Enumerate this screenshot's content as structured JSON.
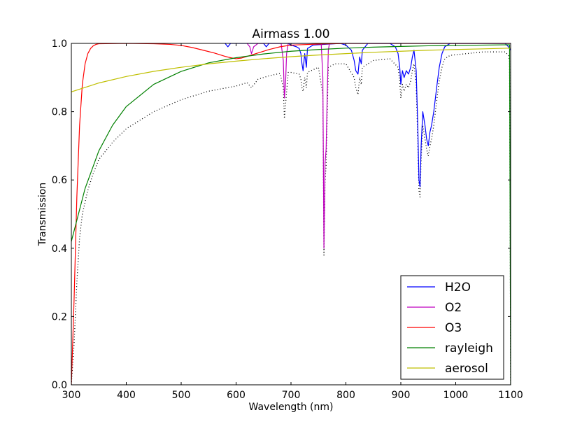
{
  "chart_data": {
    "type": "line",
    "title": "Airmass 1.00",
    "xlabel": "Wavelength (nm)",
    "ylabel": "Transmission",
    "xlim": [
      300,
      1100
    ],
    "ylim": [
      0.0,
      1.0
    ],
    "xticks": [
      300,
      400,
      500,
      600,
      700,
      800,
      900,
      1000,
      1100
    ],
    "xtick_labels": [
      "300",
      "400",
      "500",
      "600",
      "700",
      "800",
      "900",
      "1000",
      "1100"
    ],
    "yticks": [
      0.0,
      0.2,
      0.4,
      0.6,
      0.8,
      1.0
    ],
    "ytick_labels": [
      "0.0",
      "0.2",
      "0.4",
      "0.6",
      "0.8",
      "1.0"
    ],
    "grid": false,
    "legend_position": "bottom-right",
    "series": [
      {
        "name": "H2O",
        "color": "#0000ff",
        "style": "solid",
        "points": [
          [
            580,
            1.0
          ],
          [
            585,
            0.99
          ],
          [
            590,
            1.0
          ],
          [
            650,
            1.0
          ],
          [
            655,
            0.99
          ],
          [
            660,
            1.0
          ],
          [
            695,
            1.0
          ],
          [
            700,
            0.995
          ],
          [
            710,
            0.99
          ],
          [
            715,
            0.985
          ],
          [
            718,
            0.97
          ],
          [
            720,
            0.94
          ],
          [
            722,
            0.92
          ],
          [
            725,
            0.97
          ],
          [
            728,
            0.93
          ],
          [
            730,
            0.985
          ],
          [
            735,
            0.99
          ],
          [
            740,
            0.995
          ],
          [
            790,
            1.0
          ],
          [
            800,
            0.995
          ],
          [
            810,
            0.98
          ],
          [
            815,
            0.95
          ],
          [
            818,
            0.92
          ],
          [
            822,
            0.91
          ],
          [
            825,
            0.96
          ],
          [
            828,
            0.94
          ],
          [
            830,
            0.98
          ],
          [
            835,
            0.99
          ],
          [
            840,
            1.0
          ],
          [
            880,
            1.0
          ],
          [
            890,
            0.99
          ],
          [
            895,
            0.97
          ],
          [
            898,
            0.93
          ],
          [
            900,
            0.88
          ],
          [
            903,
            0.92
          ],
          [
            906,
            0.9
          ],
          [
            910,
            0.92
          ],
          [
            914,
            0.91
          ],
          [
            918,
            0.93
          ],
          [
            921,
            0.96
          ],
          [
            924,
            0.98
          ],
          [
            928,
            0.92
          ],
          [
            931,
            0.75
          ],
          [
            933,
            0.6
          ],
          [
            935,
            0.58
          ],
          [
            937,
            0.7
          ],
          [
            940,
            0.8
          ],
          [
            944,
            0.76
          ],
          [
            947,
            0.72
          ],
          [
            950,
            0.7
          ],
          [
            953,
            0.74
          ],
          [
            956,
            0.76
          ],
          [
            960,
            0.8
          ],
          [
            963,
            0.84
          ],
          [
            966,
            0.88
          ],
          [
            970,
            0.93
          ],
          [
            975,
            0.97
          ],
          [
            980,
            0.99
          ],
          [
            985,
            0.995
          ],
          [
            990,
            1.0
          ],
          [
            1090,
            1.0
          ],
          [
            1093,
            0.995
          ],
          [
            1096,
            0.99
          ],
          [
            1100,
            0.98
          ]
        ]
      },
      {
        "name": "O2",
        "color": "#bf00bf",
        "style": "solid",
        "points": [
          [
            620,
            1.0
          ],
          [
            625,
            0.99
          ],
          [
            628,
            0.97
          ],
          [
            632,
            0.99
          ],
          [
            640,
            1.0
          ],
          [
            682,
            1.0
          ],
          [
            686,
            0.95
          ],
          [
            688,
            0.84
          ],
          [
            690,
            0.88
          ],
          [
            692,
            0.97
          ],
          [
            695,
            1.0
          ],
          [
            755,
            1.0
          ],
          [
            758,
            0.9
          ],
          [
            760,
            0.4
          ],
          [
            762,
            0.65
          ],
          [
            764,
            0.69
          ],
          [
            766,
            0.85
          ],
          [
            768,
            0.98
          ],
          [
            770,
            1.0
          ],
          [
            1100,
            1.0
          ]
        ]
      },
      {
        "name": "O3",
        "color": "#ff0000",
        "style": "solid",
        "points": [
          [
            300,
            0.0
          ],
          [
            305,
            0.25
          ],
          [
            310,
            0.55
          ],
          [
            315,
            0.76
          ],
          [
            320,
            0.88
          ],
          [
            325,
            0.94
          ],
          [
            330,
            0.97
          ],
          [
            335,
            0.985
          ],
          [
            340,
            0.993
          ],
          [
            345,
            0.997
          ],
          [
            350,
            0.999
          ],
          [
            400,
            1.0
          ],
          [
            450,
            0.999
          ],
          [
            480,
            0.997
          ],
          [
            500,
            0.994
          ],
          [
            520,
            0.988
          ],
          [
            540,
            0.98
          ],
          [
            560,
            0.972
          ],
          [
            580,
            0.962
          ],
          [
            590,
            0.958
          ],
          [
            600,
            0.955
          ],
          [
            610,
            0.957
          ],
          [
            620,
            0.962
          ],
          [
            640,
            0.972
          ],
          [
            660,
            0.982
          ],
          [
            680,
            0.99
          ],
          [
            700,
            0.995
          ],
          [
            750,
            0.998
          ],
          [
            800,
            1.0
          ],
          [
            1100,
            1.0
          ]
        ]
      },
      {
        "name": "rayleigh",
        "color": "#008000",
        "style": "solid",
        "points": [
          [
            300,
            0.42
          ],
          [
            325,
            0.575
          ],
          [
            350,
            0.685
          ],
          [
            375,
            0.76
          ],
          [
            400,
            0.815
          ],
          [
            450,
            0.88
          ],
          [
            500,
            0.918
          ],
          [
            550,
            0.943
          ],
          [
            600,
            0.958
          ],
          [
            650,
            0.969
          ],
          [
            700,
            0.977
          ],
          [
            750,
            0.982
          ],
          [
            800,
            0.986
          ],
          [
            850,
            0.989
          ],
          [
            900,
            0.991
          ],
          [
            950,
            0.993
          ],
          [
            1000,
            0.994
          ],
          [
            1050,
            0.995
          ],
          [
            1098,
            0.996
          ],
          [
            1099,
            0.5
          ],
          [
            1100,
            0.0
          ]
        ]
      },
      {
        "name": "aerosol",
        "color": "#bfbf00",
        "style": "solid",
        "points": [
          [
            300,
            0.858
          ],
          [
            350,
            0.884
          ],
          [
            400,
            0.903
          ],
          [
            450,
            0.918
          ],
          [
            500,
            0.93
          ],
          [
            550,
            0.94
          ],
          [
            600,
            0.948
          ],
          [
            650,
            0.955
          ],
          [
            700,
            0.961
          ],
          [
            750,
            0.966
          ],
          [
            800,
            0.97
          ],
          [
            850,
            0.974
          ],
          [
            900,
            0.977
          ],
          [
            950,
            0.98
          ],
          [
            1000,
            0.982
          ],
          [
            1050,
            0.984
          ],
          [
            1100,
            0.986
          ]
        ]
      },
      {
        "name": "",
        "color": "#000000",
        "style": "dotted",
        "points": [
          [
            300,
            0.0
          ],
          [
            305,
            0.12
          ],
          [
            310,
            0.3
          ],
          [
            315,
            0.43
          ],
          [
            320,
            0.5
          ],
          [
            330,
            0.57
          ],
          [
            340,
            0.62
          ],
          [
            350,
            0.66
          ],
          [
            375,
            0.71
          ],
          [
            400,
            0.75
          ],
          [
            450,
            0.8
          ],
          [
            500,
            0.835
          ],
          [
            550,
            0.86
          ],
          [
            600,
            0.875
          ],
          [
            620,
            0.885
          ],
          [
            628,
            0.87
          ],
          [
            640,
            0.895
          ],
          [
            660,
            0.905
          ],
          [
            680,
            0.912
          ],
          [
            686,
            0.87
          ],
          [
            688,
            0.78
          ],
          [
            690,
            0.82
          ],
          [
            695,
            0.915
          ],
          [
            700,
            0.915
          ],
          [
            715,
            0.91
          ],
          [
            718,
            0.895
          ],
          [
            720,
            0.87
          ],
          [
            722,
            0.86
          ],
          [
            725,
            0.9
          ],
          [
            728,
            0.87
          ],
          [
            730,
            0.915
          ],
          [
            750,
            0.93
          ],
          [
            758,
            0.85
          ],
          [
            760,
            0.38
          ],
          [
            762,
            0.6
          ],
          [
            764,
            0.64
          ],
          [
            766,
            0.8
          ],
          [
            768,
            0.93
          ],
          [
            780,
            0.94
          ],
          [
            800,
            0.94
          ],
          [
            815,
            0.9
          ],
          [
            818,
            0.87
          ],
          [
            822,
            0.85
          ],
          [
            825,
            0.9
          ],
          [
            828,
            0.88
          ],
          [
            830,
            0.93
          ],
          [
            850,
            0.95
          ],
          [
            880,
            0.955
          ],
          [
            895,
            0.93
          ],
          [
            898,
            0.89
          ],
          [
            900,
            0.84
          ],
          [
            903,
            0.88
          ],
          [
            906,
            0.86
          ],
          [
            910,
            0.88
          ],
          [
            914,
            0.87
          ],
          [
            918,
            0.89
          ],
          [
            921,
            0.92
          ],
          [
            924,
            0.94
          ],
          [
            928,
            0.88
          ],
          [
            931,
            0.71
          ],
          [
            933,
            0.57
          ],
          [
            935,
            0.55
          ],
          [
            937,
            0.66
          ],
          [
            940,
            0.76
          ],
          [
            944,
            0.72
          ],
          [
            947,
            0.69
          ],
          [
            950,
            0.67
          ],
          [
            953,
            0.7
          ],
          [
            956,
            0.72
          ],
          [
            960,
            0.76
          ],
          [
            963,
            0.8
          ],
          [
            966,
            0.84
          ],
          [
            970,
            0.89
          ],
          [
            975,
            0.93
          ],
          [
            980,
            0.955
          ],
          [
            990,
            0.965
          ],
          [
            1050,
            0.975
          ],
          [
            1090,
            0.975
          ],
          [
            1096,
            0.965
          ],
          [
            1098,
            0.95
          ],
          [
            1099,
            0.5
          ],
          [
            1100,
            0.0
          ]
        ]
      }
    ]
  }
}
